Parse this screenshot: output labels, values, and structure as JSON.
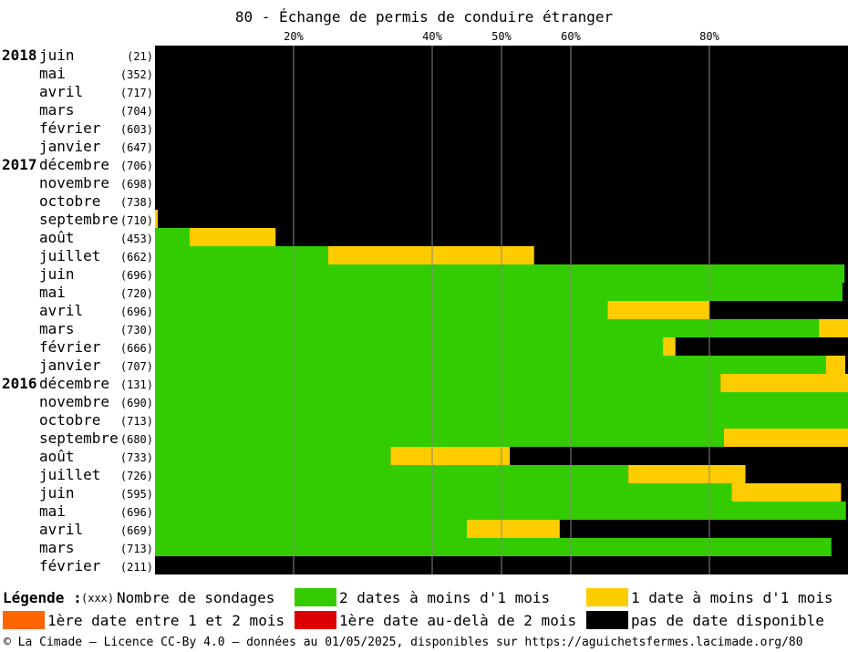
{
  "title": "80 - Échange de permis de conduire étranger",
  "colors": {
    "green": "#33cc00",
    "yellow": "#ffcc00",
    "orange": "#ff6600",
    "red": "#dd0000",
    "black": "#000000",
    "grid": "#888888"
  },
  "chart_data": {
    "type": "bar",
    "orientation": "horizontal",
    "stacked": true,
    "x_ticks": [
      "20%",
      "40%",
      "50%",
      "60%",
      "80%"
    ],
    "x_tick_values": [
      20,
      40,
      50,
      60,
      80
    ],
    "xlim": [
      0,
      100
    ],
    "series": [
      {
        "name": "2 dates à moins d'1 mois",
        "color": "green"
      },
      {
        "name": "1 date à moins d'1 mois",
        "color": "yellow"
      },
      {
        "name": "1ère date entre 1 et 2 mois",
        "color": "orange"
      },
      {
        "name": "1ère date au-delà de 2 mois",
        "color": "red"
      },
      {
        "name": "pas de date disponible",
        "color": "black"
      }
    ],
    "rows": [
      {
        "year": "2018",
        "month": "juin",
        "count": "(21)",
        "green": 0,
        "yellow": 0
      },
      {
        "year": "",
        "month": "mai",
        "count": "(352)",
        "green": 0,
        "yellow": 0
      },
      {
        "year": "",
        "month": "avril",
        "count": "(717)",
        "green": 0,
        "yellow": 0
      },
      {
        "year": "",
        "month": "mars",
        "count": "(704)",
        "green": 0,
        "yellow": 0
      },
      {
        "year": "",
        "month": "février",
        "count": "(603)",
        "green": 0,
        "yellow": 0
      },
      {
        "year": "",
        "month": "janvier",
        "count": "(647)",
        "green": 0,
        "yellow": 0
      },
      {
        "year": "2017",
        "month": "décembre",
        "count": "(706)",
        "green": 0,
        "yellow": 0
      },
      {
        "year": "",
        "month": "novembre",
        "count": "(698)",
        "green": 0,
        "yellow": 0
      },
      {
        "year": "",
        "month": "octobre",
        "count": "(738)",
        "green": 0,
        "yellow": 0
      },
      {
        "year": "",
        "month": "septembre",
        "count": "(710)",
        "green": 0,
        "yellow": 0.4
      },
      {
        "year": "",
        "month": "août",
        "count": "(453)",
        "green": 5,
        "yellow": 12.4
      },
      {
        "year": "",
        "month": "juillet",
        "count": "(662)",
        "green": 25,
        "yellow": 29.7
      },
      {
        "year": "",
        "month": "juin",
        "count": "(696)",
        "green": 99.5,
        "yellow": 0
      },
      {
        "year": "",
        "month": "mai",
        "count": "(720)",
        "green": 99.2,
        "yellow": 0
      },
      {
        "year": "",
        "month": "avril",
        "count": "(696)",
        "green": 65.3,
        "yellow": 14.7
      },
      {
        "year": "",
        "month": "mars",
        "count": "(730)",
        "green": 95.8,
        "yellow": 4.2
      },
      {
        "year": "",
        "month": "février",
        "count": "(666)",
        "green": 73.3,
        "yellow": 1.8
      },
      {
        "year": "",
        "month": "janvier",
        "count": "(707)",
        "green": 96.8,
        "yellow": 2.8
      },
      {
        "year": "2016",
        "month": "décembre",
        "count": "(131)",
        "green": 81.6,
        "yellow": 18.4
      },
      {
        "year": "",
        "month": "novembre",
        "count": "(690)",
        "green": 100,
        "yellow": 0
      },
      {
        "year": "",
        "month": "octobre",
        "count": "(713)",
        "green": 100,
        "yellow": 0
      },
      {
        "year": "",
        "month": "septembre",
        "count": "(680)",
        "green": 82.1,
        "yellow": 17.9
      },
      {
        "year": "",
        "month": "août",
        "count": "(733)",
        "green": 34,
        "yellow": 17.2
      },
      {
        "year": "",
        "month": "juillet",
        "count": "(726)",
        "green": 68.3,
        "yellow": 16.9
      },
      {
        "year": "",
        "month": "juin",
        "count": "(595)",
        "green": 83.2,
        "yellow": 15.8
      },
      {
        "year": "",
        "month": "mai",
        "count": "(696)",
        "green": 99.7,
        "yellow": 0
      },
      {
        "year": "",
        "month": "avril",
        "count": "(669)",
        "green": 45,
        "yellow": 13.4
      },
      {
        "year": "",
        "month": "mars",
        "count": "(713)",
        "green": 97.6,
        "yellow": 0
      },
      {
        "year": "",
        "month": "février",
        "count": "(211)",
        "green": 0,
        "yellow": 0
      }
    ]
  },
  "legend": {
    "heading": "Légende :",
    "count_marker": "(xxx)",
    "count_label": "Nombre de sondages",
    "items": [
      {
        "label": "2 dates à moins d'1 mois",
        "color": "green"
      },
      {
        "label": "1 date à moins d'1 mois",
        "color": "yellow"
      },
      {
        "label": "1ère date entre 1 et 2 mois",
        "color": "orange"
      },
      {
        "label": "1ère date au-delà de 2 mois",
        "color": "red"
      },
      {
        "label": "pas de date disponible",
        "color": "black"
      }
    ]
  },
  "footer": "© La Cimade — Licence CC-By 4.0 — données au 01/05/2025, disponibles sur https://aguichetsfermes.lacimade.org/80"
}
